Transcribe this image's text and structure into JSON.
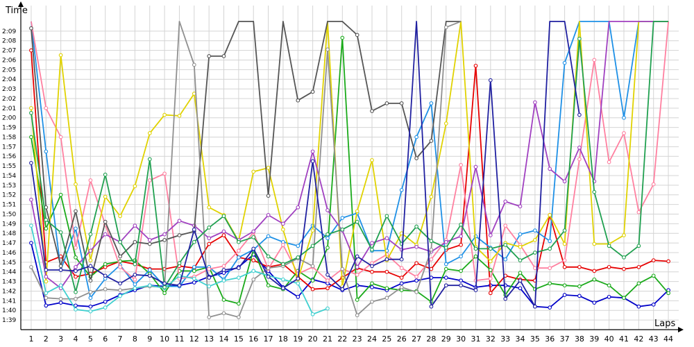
{
  "chart_data": {
    "type": "line",
    "xlabel": "Laps",
    "ylabel": "Time",
    "x_ticks": [
      "1",
      "2",
      "3",
      "4",
      "5",
      "6",
      "7",
      "8",
      "9",
      "10",
      "11",
      "12",
      "13",
      "14",
      "15",
      "16",
      "17",
      "18",
      "19",
      "20",
      "21",
      "22",
      "23",
      "24",
      "25",
      "26",
      "27",
      "28",
      "29",
      "30",
      "31",
      "32",
      "33",
      "34",
      "35",
      "36",
      "37",
      "38",
      "39",
      "40",
      "41",
      "42",
      "43",
      "44"
    ],
    "y_ticks": [
      "1:39",
      "1:40",
      "1:41",
      "1:42",
      "1:43",
      "1:44",
      "1:45",
      "1:46",
      "1:47",
      "1:48",
      "1:49",
      "1:50",
      "1:51",
      "1:52",
      "1:53",
      "1:54",
      "1:55",
      "1:56",
      "1:57",
      "1:58",
      "1:59",
      "2:00",
      "2:01",
      "2:02",
      "2:03",
      "2:04",
      "2:05",
      "2:06",
      "2:07",
      "2:08",
      "2:09"
    ],
    "ylim_seconds": [
      98,
      130.5
    ],
    "xlim": [
      0.3,
      44.7
    ],
    "grid": true,
    "legend": "none",
    "series": [
      {
        "color": "#0000c8",
        "x": [
          1,
          2,
          3,
          4,
          5,
          6,
          7,
          8,
          9,
          10,
          11,
          12,
          13,
          14,
          15,
          16,
          17,
          18,
          19,
          20,
          21,
          22,
          23,
          24,
          25,
          26,
          27,
          28,
          29,
          30,
          31,
          32,
          33,
          34,
          35,
          36,
          37,
          38,
          39,
          40,
          41,
          42,
          43,
          44
        ],
        "y": [
          107,
          100.5,
          100.8,
          100.5,
          100.4,
          100.9,
          101.6,
          102.1,
          102.6,
          102.5,
          102.6,
          102.9,
          103.5,
          103.9,
          104.5,
          105.8,
          104.1,
          102.4,
          101.4,
          103.2,
          102.8,
          102.1,
          102.6,
          102.4,
          102.1,
          102.8,
          103.1,
          103.4,
          103.4,
          103.1,
          102.4,
          102.6,
          102.6,
          102.3,
          100.4,
          100.3,
          101.6,
          101.5,
          100.8,
          101.4,
          101.3,
          100.4,
          100.6,
          102.1
        ]
      },
      {
        "color": "#e60000",
        "x": [
          1,
          2,
          3,
          4,
          5,
          6,
          7,
          8,
          9,
          10,
          11,
          12,
          13,
          14,
          15,
          16,
          17,
          18,
          19,
          20,
          21,
          22,
          23,
          24,
          25,
          26,
          27,
          28,
          29,
          30,
          31,
          32,
          33,
          34,
          35,
          36,
          37,
          38,
          39,
          40,
          41,
          42,
          43,
          44
        ],
        "y": [
          127,
          105,
          105.6,
          103.5,
          103.8,
          104.5,
          105.1,
          104.8,
          104.3,
          104.3,
          104.6,
          104.4,
          106.9,
          107.8,
          105.5,
          105.2,
          104.5,
          104.8,
          103.5,
          102.2,
          102.3,
          103.4,
          104.4,
          104,
          104,
          103.4,
          104.9,
          104.3,
          106.3,
          106.8,
          125.4,
          101.8,
          103.6,
          103.2,
          103.1,
          109.9,
          104.5,
          104.5,
          104.1,
          104.5,
          104.3,
          104.5,
          105.2,
          105.1
        ]
      },
      {
        "color": "#1aaa1a",
        "x": [
          1,
          2,
          3,
          4,
          5,
          6,
          7,
          8,
          9,
          10,
          11,
          12,
          13,
          14,
          15,
          16,
          17,
          18,
          19,
          20,
          21,
          22,
          23,
          24,
          25,
          26,
          27,
          28,
          29,
          30,
          31,
          32,
          33,
          34,
          35,
          36,
          37,
          38,
          39,
          40,
          41,
          42,
          43,
          44
        ],
        "y": [
          118,
          108.5,
          112,
          105.5,
          103.5,
          104.8,
          105.1,
          105.2,
          103.8,
          101.8,
          104.1,
          104.1,
          104.5,
          101.1,
          100.7,
          106.3,
          102.6,
          102.2,
          104.1,
          103.1,
          106.5,
          128.3,
          101.1,
          102.8,
          102.3,
          102.1,
          102,
          100.9,
          104.3,
          104.1,
          105.6,
          104.2,
          101.6,
          103.9,
          102.2,
          102.8,
          102.6,
          102.5,
          103.2,
          102.6,
          101.3,
          102.8,
          103.6,
          101.8
        ]
      },
      {
        "color": "#1e90e6",
        "x": [
          1,
          2,
          3,
          4,
          5,
          6,
          7,
          8,
          9,
          10,
          11,
          12,
          13,
          14,
          15,
          16,
          17,
          18,
          19,
          20,
          21,
          22,
          23,
          24,
          25,
          26,
          27,
          28,
          29,
          30,
          31,
          32,
          33,
          34,
          35,
          36,
          37,
          38,
          39,
          40,
          41,
          42,
          43,
          44
        ],
        "y": [
          130,
          116.5,
          104.2,
          108.5,
          101.3,
          103.3,
          104.7,
          102.7,
          104.2,
          102.5,
          102.5,
          104.5,
          104.5,
          103.2,
          105.5,
          106.3,
          107.7,
          107.1,
          106.7,
          108.8,
          107.5,
          109.6,
          110.1,
          106.2,
          106.2,
          112.5,
          118,
          121.5,
          104.8,
          105.6,
          107.7,
          106.5,
          105.3,
          107.9,
          108.3,
          107.2,
          125.7,
          130,
          130,
          130,
          120,
          130,
          130,
          130
        ]
      },
      {
        "color": "#ff80a0",
        "x": [
          1,
          2,
          3,
          4,
          5,
          6,
          7,
          8,
          9,
          10,
          11,
          12,
          13,
          14,
          15,
          16,
          17,
          18,
          19,
          20,
          21,
          22,
          23,
          24,
          25,
          26,
          27,
          28,
          29,
          30,
          31,
          32,
          33,
          34,
          35,
          36,
          37,
          38,
          39,
          40,
          41,
          42,
          43,
          44
        ],
        "y": [
          130,
          121,
          118,
          106.5,
          113.5,
          108.9,
          104.5,
          103.2,
          113.5,
          114.2,
          103.3,
          103.5,
          104.3,
          104.6,
          106.2,
          108.1,
          104.3,
          106.8,
          103.8,
          104.5,
          103.1,
          104.3,
          103.7,
          104.9,
          105.8,
          104.4,
          103.5,
          105.3,
          107.3,
          115.1,
          103.1,
          103.3,
          108.8,
          106.8,
          104.4,
          104.4,
          105.2,
          115.7,
          126,
          115.4,
          118.4,
          110.2,
          113.1,
          130
        ]
      },
      {
        "color": "#e0d200",
        "x": [
          1,
          2,
          3,
          4,
          5,
          6,
          7,
          8,
          9,
          10,
          11,
          12,
          13,
          14,
          15,
          16,
          17,
          18,
          19,
          20,
          21,
          22,
          23,
          24,
          25,
          26,
          27,
          28,
          29,
          30,
          31,
          32,
          33,
          34,
          35,
          36,
          37,
          38,
          39,
          40,
          41,
          42,
          43,
          44
        ],
        "y": [
          121,
          103,
          126.5,
          113.1,
          105.2,
          111.8,
          109.8,
          112.9,
          118.4,
          120.3,
          120.2,
          122.5,
          110.7,
          109.9,
          107.2,
          114.4,
          114.8,
          108.4,
          103.2,
          108.3,
          130,
          102.5,
          110.3,
          115.6,
          105.2,
          108,
          106.8,
          111.8,
          119.4,
          130,
          106.6,
          105.1,
          107,
          106.6,
          107.3,
          109.9,
          106.9,
          130,
          106.9,
          106.9,
          107.8,
          130,
          130,
          130
        ]
      },
      {
        "color": "#a040c0",
        "x": [
          1,
          2,
          3,
          4,
          5,
          6,
          7,
          8,
          9,
          10,
          11,
          12,
          13,
          14,
          15,
          16,
          17,
          18,
          19,
          20,
          21,
          22,
          23,
          24,
          25,
          26,
          27,
          28,
          29,
          30,
          31,
          32,
          33,
          34,
          35,
          36,
          37,
          38,
          39,
          40,
          41,
          42,
          43,
          44
        ],
        "y": [
          111.5,
          103.5,
          102.3,
          104.5,
          106.2,
          107.9,
          107.1,
          108.8,
          107.3,
          107.9,
          109.3,
          108.8,
          107.5,
          108.2,
          107.3,
          108.2,
          109.9,
          109,
          110.7,
          116.5,
          110.4,
          108.3,
          104.5,
          107,
          107.5,
          106.3,
          106.6,
          106.1,
          107.1,
          107.7,
          114.9,
          107.8,
          111.3,
          110.8,
          121.6,
          114.7,
          113.4,
          116.9,
          113.4,
          130,
          130,
          130,
          130,
          130
        ]
      },
      {
        "color": "#555555",
        "x": [
          1,
          2,
          3,
          4,
          5,
          6,
          7,
          8,
          9,
          10,
          11,
          12,
          13,
          14,
          15,
          16,
          17,
          18,
          19,
          20,
          21,
          22,
          23,
          24,
          25,
          26,
          27,
          28,
          29,
          30
        ],
        "y": [
          129.3,
          110.7,
          104.6,
          110.3,
          103.1,
          109.2,
          105.6,
          107.1,
          106.9,
          107.3,
          107.8,
          108.2,
          126.4,
          126.4,
          130,
          130,
          111.9,
          130,
          121.8,
          122.7,
          130,
          130,
          128.6,
          120.7,
          121.5,
          121.5,
          115.8,
          117.6,
          130,
          130
        ]
      },
      {
        "color": "#909090",
        "x": [
          1,
          2,
          3,
          4,
          5,
          6,
          7,
          8,
          9,
          10,
          11,
          12,
          13,
          14,
          15,
          16,
          17,
          18,
          19,
          20,
          21,
          22,
          23,
          24,
          25,
          26,
          27,
          28,
          29,
          30
        ],
        "y": [
          104.5,
          101.3,
          101.2,
          101.2,
          101.9,
          102.2,
          102.1,
          102.3,
          102.5,
          102.4,
          130,
          125.5,
          99.3,
          99.7,
          99.3,
          103.2,
          104.4,
          104.6,
          105.4,
          104.6,
          127.1,
          104.3,
          99.5,
          100.9,
          101.3,
          102.4,
          101.9,
          106.3,
          129.4,
          130
        ]
      },
      {
        "color": "#40d0d0",
        "x": [
          1,
          2,
          3,
          4,
          5,
          6,
          7,
          8,
          9,
          10,
          11,
          12,
          13,
          14,
          15,
          16,
          17,
          18,
          19,
          20,
          21
        ],
        "y": [
          108.8,
          101.8,
          102.6,
          100.1,
          99.9,
          100.3,
          101.5,
          102.3,
          102.6,
          102.3,
          103.6,
          103.3,
          102.5,
          103.1,
          103.4,
          104.1,
          103.6,
          103.2,
          102.8,
          99.6,
          100.2
        ]
      },
      {
        "color": "#20a050",
        "x": [
          1,
          2,
          3,
          4,
          5,
          6,
          7,
          8,
          9,
          10,
          11,
          12,
          13,
          14,
          15,
          16,
          17,
          18,
          19,
          20,
          21,
          22,
          23,
          24,
          25,
          26,
          27,
          28,
          29,
          30,
          31,
          32,
          33,
          34,
          35,
          36,
          37,
          38,
          39,
          40,
          41,
          42,
          43,
          44
        ],
        "y": [
          120.5,
          109.4,
          108.1,
          101.9,
          107.9,
          114.1,
          107.1,
          104.8,
          115.7,
          102.4,
          104.9,
          107.1,
          108.6,
          109.8,
          107.1,
          107.6,
          105.6,
          104.8,
          105.5,
          106.7,
          107.9,
          108.4,
          109.2,
          106.3,
          109.8,
          106.9,
          108.7,
          107.2,
          106.5,
          108.9,
          106.4,
          106.4,
          106.8,
          105.2,
          106,
          106.4,
          108.3,
          128.2,
          112.3,
          106.7,
          105.5,
          106.7,
          130,
          130
        ]
      },
      {
        "color": "#2020a0",
        "x": [
          1,
          2,
          3,
          4,
          5,
          6,
          7,
          8,
          9,
          10,
          11,
          12,
          13,
          14,
          15,
          16,
          17,
          18,
          19,
          20,
          21,
          22,
          23,
          24,
          25,
          26,
          27,
          28,
          29,
          30,
          31,
          32,
          33,
          34,
          35,
          36,
          37,
          38
        ],
        "y": [
          115.3,
          104.2,
          104.2,
          104.1,
          104.6,
          103.6,
          102.8,
          103.7,
          103.6,
          102.8,
          102.6,
          108.4,
          103.4,
          104.2,
          104.4,
          106.4,
          103.5,
          102.3,
          103.3,
          115.5,
          103.7,
          102.2,
          105.6,
          104.6,
          105.3,
          105.3,
          130,
          100.4,
          102.6,
          102.6,
          102.1,
          123.9,
          101.2,
          103.1,
          100.4,
          130,
          130,
          120.3
        ]
      }
    ]
  }
}
